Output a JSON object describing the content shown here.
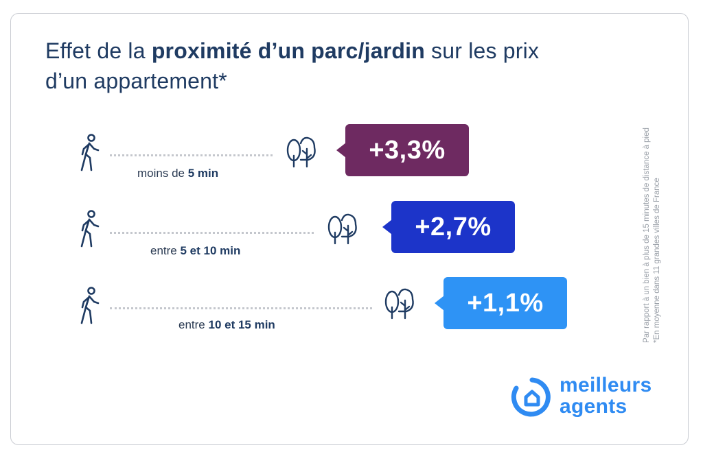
{
  "title": {
    "prefix": "Effet de la ",
    "bold": "proximité d’un parc/jardin",
    "suffix": " sur les prix d’un appartement*"
  },
  "rows": [
    {
      "label_prefix": "moins de ",
      "label_bold": "5 min",
      "value": "+3,3%",
      "color": "#6e2a61"
    },
    {
      "label_prefix": "entre ",
      "label_bold": "5 et 10 min",
      "value": "+2,7%",
      "color": "#1c34c9"
    },
    {
      "label_prefix": "entre ",
      "label_bold": "10 et 15 min",
      "value": "+1,1%",
      "color": "#2e93f5"
    }
  ],
  "notes": {
    "line1": "Par rapport à un bien à plus de 15 minutes de distance à pied",
    "line2": "*En moyenne dans 11 grandes villes de France"
  },
  "logo": {
    "line1": "meilleurs",
    "line2": "agents",
    "color": "#2f8bf2"
  },
  "icons": {
    "walker": "walking-person-icon",
    "trees": "trees-icon",
    "logo": "house-ring-logo-icon"
  }
}
